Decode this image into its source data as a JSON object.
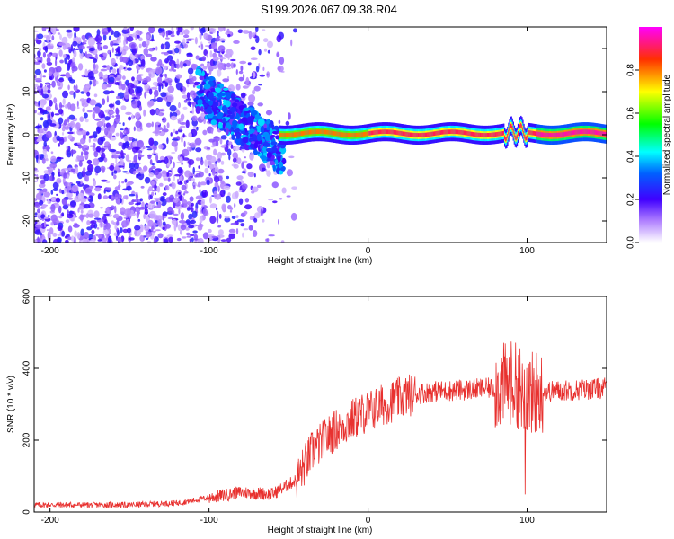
{
  "title": "S199.2026.067.09.38.R04",
  "chart_data": [
    {
      "type": "heatmap",
      "xlabel": "Height of straight line (km)",
      "ylabel": "Frequency (Hz)",
      "xlim": [
        -210,
        150
      ],
      "ylim": [
        -25,
        25
      ],
      "xticks": [
        -200,
        -100,
        0,
        100
      ],
      "yticks": [
        -20,
        -10,
        0,
        10,
        20
      ],
      "colorbar": {
        "label": "Normalized spectral amplitude",
        "range": [
          0,
          1
        ],
        "ticks": [
          "0.0",
          "0.2",
          "0.4",
          "0.6",
          "0.8"
        ],
        "tick_values": [
          0.0,
          0.2,
          0.4,
          0.6,
          0.8
        ],
        "colormap": [
          "#ffffff",
          "#8a2be2",
          "#0000ff",
          "#00ffff",
          "#00ff00",
          "#ffff00",
          "#ff0000",
          "#ff00ff"
        ]
      },
      "regions": [
        {
          "description_x_range": [
            -210,
            -55
          ],
          "freq_range": [
            -25,
            25
          ],
          "amplitude": "low",
          "color": "#8a2be2"
        },
        {
          "description_x_range": [
            -105,
            -55
          ],
          "freq_center_start": 10,
          "freq_center_end": -4,
          "amplitude": "medium"
        },
        {
          "description_x_range": [
            -55,
            150
          ],
          "freq_center": 0.5,
          "amplitude": "high"
        }
      ],
      "grid": false
    },
    {
      "type": "line",
      "xlabel": "Height of straight line (km)",
      "ylabel": "SNR (10 * v/v)",
      "xlim": [
        -210,
        150
      ],
      "ylim": [
        0,
        600
      ],
      "xticks": [
        -200,
        -100,
        0,
        100
      ],
      "yticks": [
        0,
        200,
        400,
        600
      ],
      "color": "#e8312f",
      "x": [
        -210,
        -180,
        -150,
        -120,
        -100,
        -80,
        -60,
        -45,
        -35,
        -20,
        -5,
        10,
        25,
        40,
        60,
        80,
        90,
        95,
        100,
        110,
        130,
        150
      ],
      "y": [
        20,
        20,
        20,
        25,
        40,
        55,
        50,
        90,
        170,
        230,
        270,
        300,
        325,
        335,
        340,
        345,
        360,
        350,
        330,
        335,
        340,
        345
      ],
      "grid": false
    }
  ]
}
